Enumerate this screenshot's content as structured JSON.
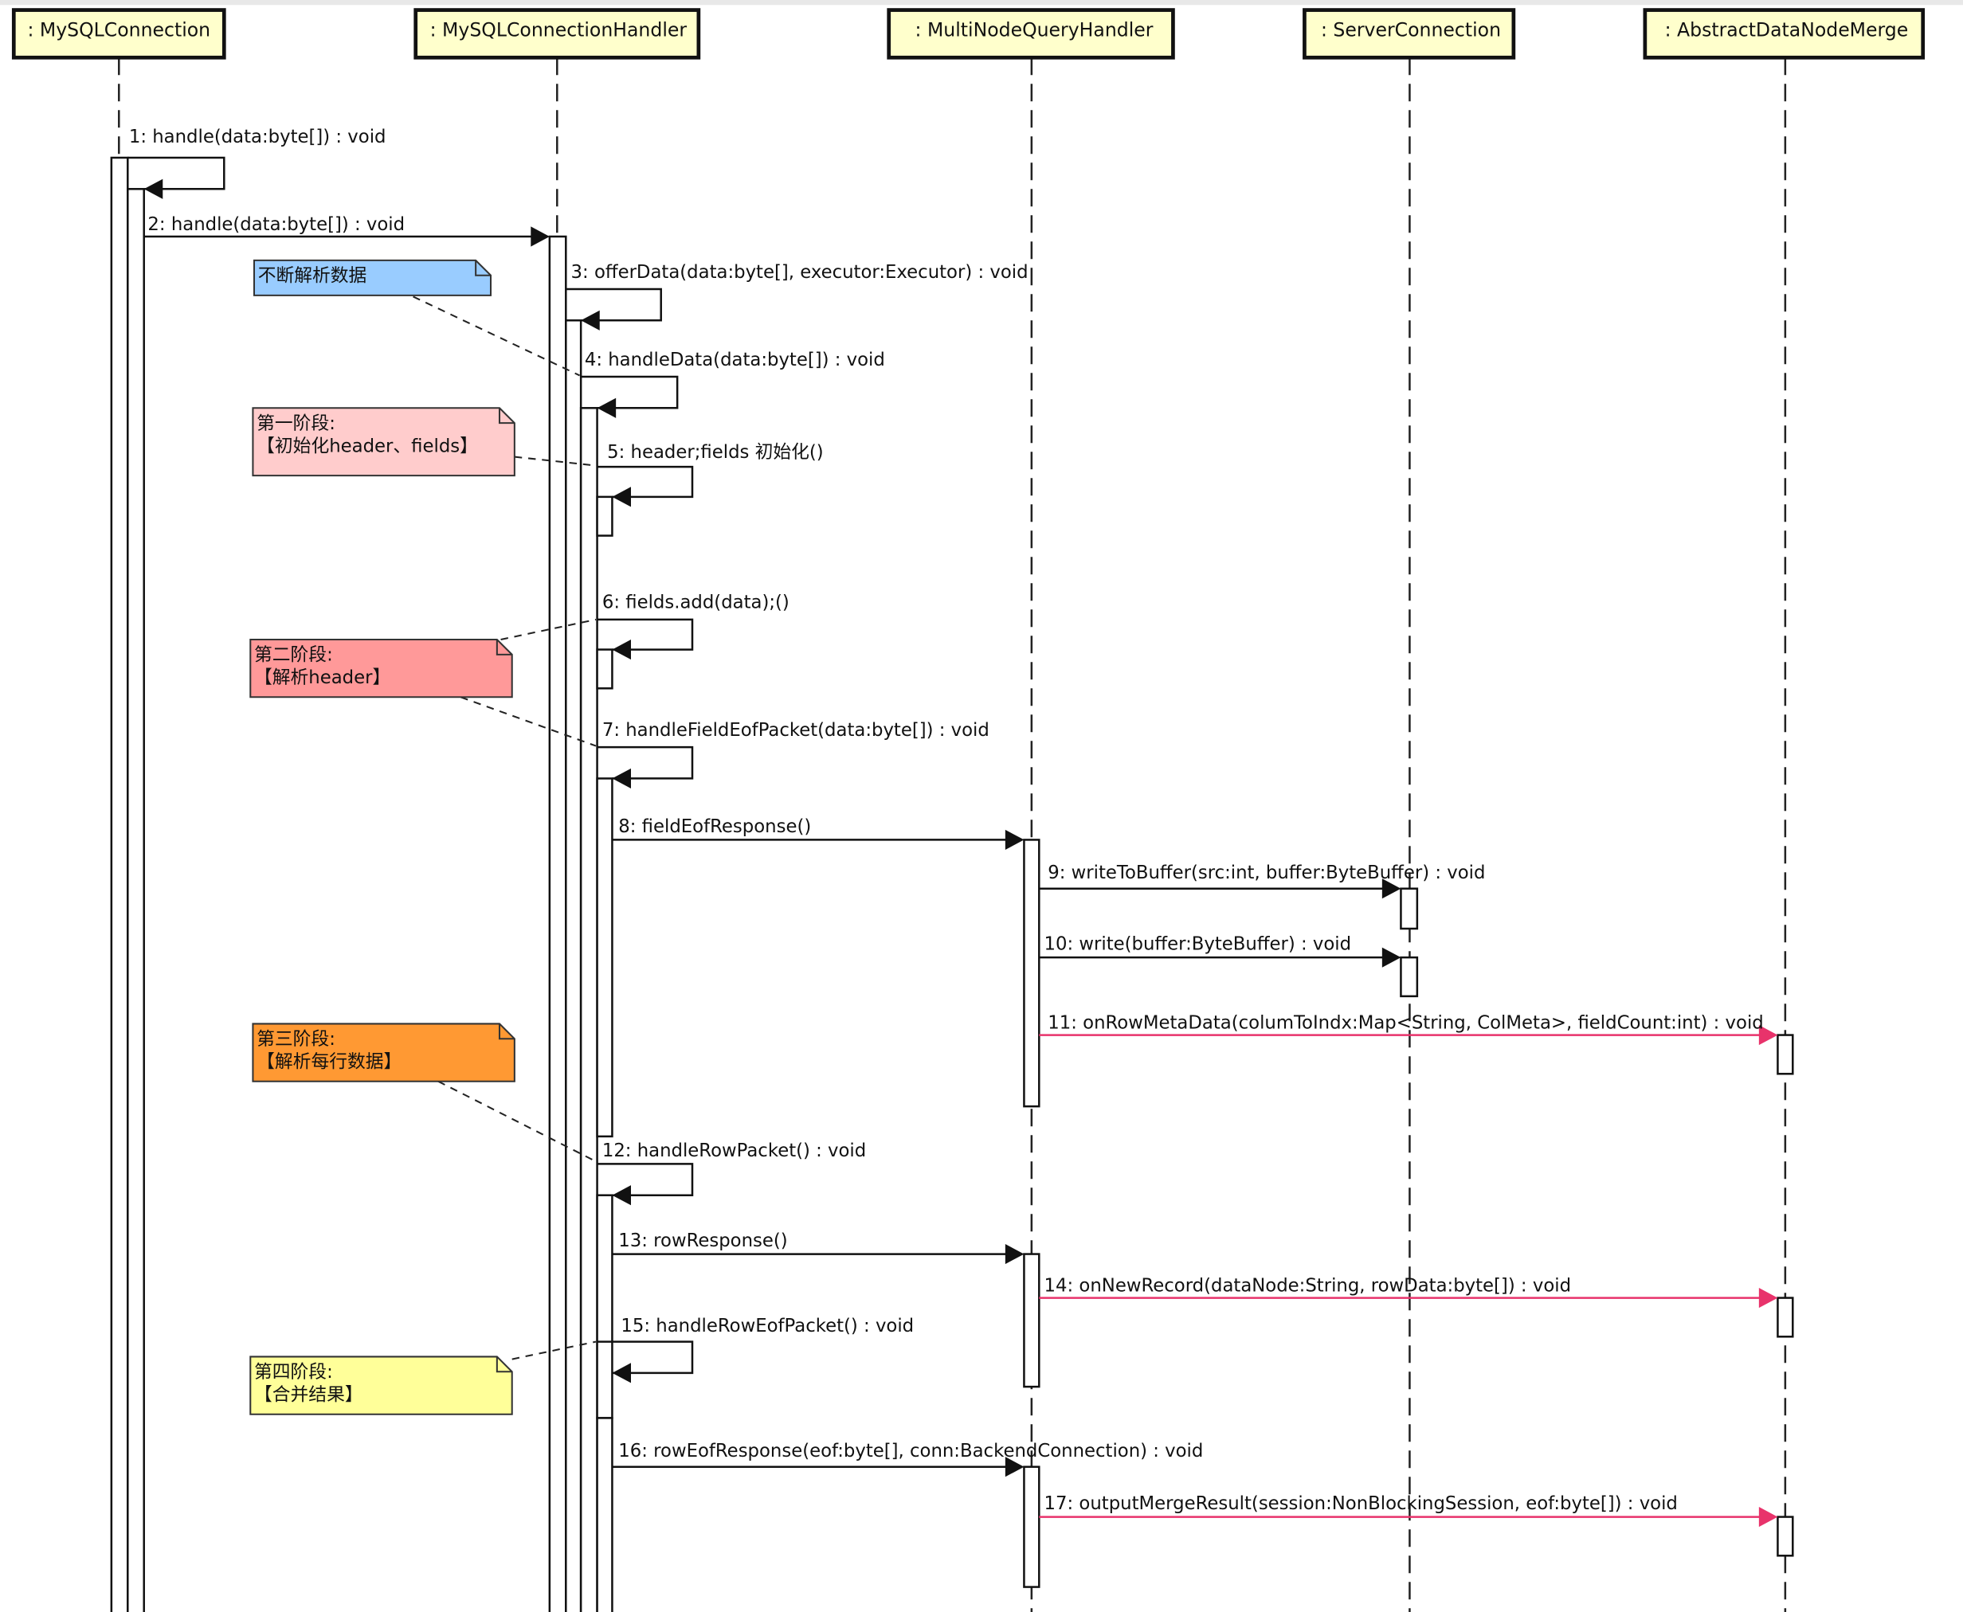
{
  "diagram": {
    "type": "uml-sequence",
    "lifelines": [
      {
        "id": "conn",
        "label": ": MySQLConnection"
      },
      {
        "id": "handler",
        "label": ": MySQLConnectionHandler"
      },
      {
        "id": "multi",
        "label": ": MultiNodeQueryHandler"
      },
      {
        "id": "server",
        "label": ": ServerConnection"
      },
      {
        "id": "merge",
        "label": ": AbstractDataNodeMerge"
      }
    ],
    "messages": [
      {
        "label": "1: handle(data:byte[]) : void",
        "from": "conn",
        "to": "conn"
      },
      {
        "label": "2: handle(data:byte[]) : void",
        "from": "conn",
        "to": "handler"
      },
      {
        "label": "3: offerData(data:byte[], executor:Executor) : void",
        "from": "handler",
        "to": "handler"
      },
      {
        "label": "4: handleData(data:byte[]) : void",
        "from": "handler",
        "to": "handler"
      },
      {
        "label": "5: header;fields 初始化()",
        "from": "handler",
        "to": "handler"
      },
      {
        "label": "6: fields.add(data);()",
        "from": "handler",
        "to": "handler"
      },
      {
        "label": "7: handleFieldEofPacket(data:byte[]) : void",
        "from": "handler",
        "to": "handler"
      },
      {
        "label": "8: fieldEofResponse()",
        "from": "handler",
        "to": "multi"
      },
      {
        "label": "9: writeToBuffer(src:int, buffer:ByteBuffer) : void",
        "from": "multi",
        "to": "server"
      },
      {
        "label": "10: write(buffer:ByteBuffer) : void",
        "from": "multi",
        "to": "server"
      },
      {
        "label": "11: onRowMetaData(columToIndx:Map<String, ColMeta>, fieldCount:int) : void",
        "from": "multi",
        "to": "merge"
      },
      {
        "label": "12: handleRowPacket() : void",
        "from": "handler",
        "to": "handler"
      },
      {
        "label": "13: rowResponse()",
        "from": "handler",
        "to": "multi"
      },
      {
        "label": "14: onNewRecord(dataNode:String, rowData:byte[]) : void",
        "from": "multi",
        "to": "merge"
      },
      {
        "label": "15: handleRowEofPacket() : void",
        "from": "handler",
        "to": "handler"
      },
      {
        "label": "16: rowEofResponse(eof:byte[], conn:BackendConnection) : void",
        "from": "handler",
        "to": "multi"
      },
      {
        "label": "17: outputMergeResult(session:NonBlockingSession, eof:byte[]) : void",
        "from": "multi",
        "to": "merge"
      }
    ],
    "notes": [
      {
        "lines": [
          "不断解析数据"
        ],
        "color": "#99ccff"
      },
      {
        "lines": [
          "第一阶段:",
          "【初始化header、fields】"
        ],
        "color": "#ffcccc"
      },
      {
        "lines": [
          "第二阶段:",
          "【解析header】"
        ],
        "color": "#ff9999"
      },
      {
        "lines": [
          "第三阶段:",
          "【解析每行数据】"
        ],
        "color": "#ff9933"
      },
      {
        "lines": [
          "第四阶段:",
          "【合并结果】"
        ],
        "color": "#ffff99"
      }
    ],
    "colors": {
      "lifeline_header": "#ffffcc",
      "async_message": "#e8336b",
      "message": "#111111"
    }
  }
}
